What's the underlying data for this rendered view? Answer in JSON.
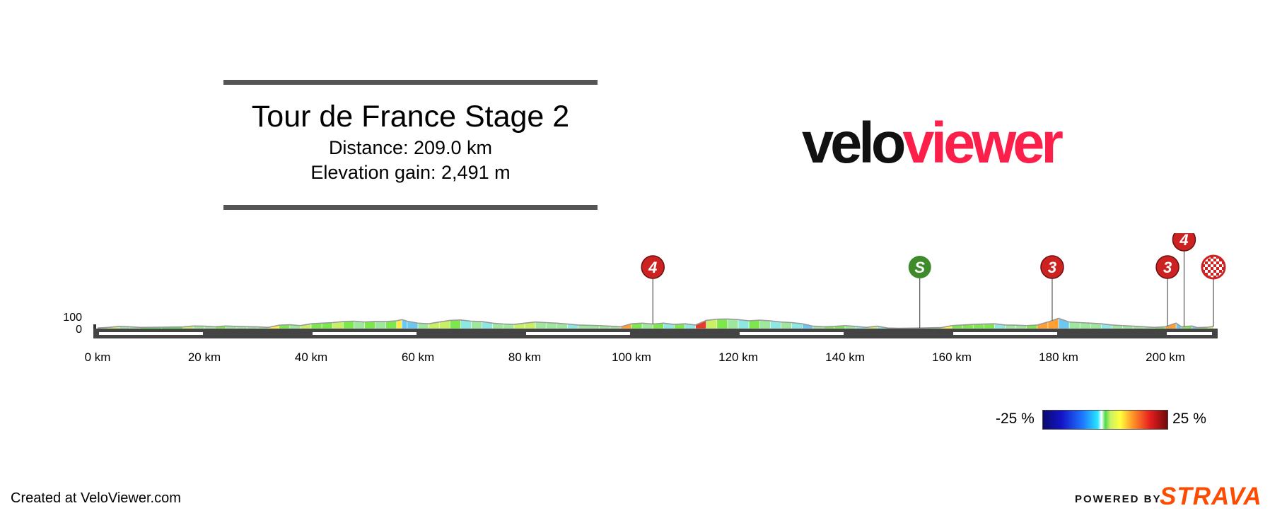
{
  "stage": {
    "title": "Tour de France Stage 2",
    "distance_text": "Distance: 209.0 km",
    "elevation_text": "Elevation gain: 2,491 m"
  },
  "logo": {
    "part1": "velo",
    "part2": "viewer",
    "color_dark": "#111111",
    "color_red": "#fc1f49"
  },
  "legend": {
    "min_label": "-25 %",
    "max_label": "25 %",
    "type": "gradient colour scale"
  },
  "footer": {
    "credit": "Created at VeloViewer.com",
    "powered_by": "POWERED BY",
    "brand": "STRAVA"
  },
  "colors": {
    "climb_marker": "#cc2222",
    "sprint_marker": "#3f8a2a",
    "bar": "#444444",
    "ground": "#333333"
  },
  "chart_data": {
    "type": "area",
    "title": "Tour de France Stage 2",
    "xlabel": "",
    "ylabel": "",
    "x_unit": "km",
    "xlim": [
      0,
      209
    ],
    "ylim": [
      0,
      160
    ],
    "yticks": [
      0,
      100
    ],
    "ytick_labels": [
      "0",
      "100"
    ],
    "xticks": [
      0,
      20,
      40,
      60,
      80,
      100,
      120,
      140,
      160,
      180,
      200
    ],
    "xtick_labels": [
      "0 km",
      "20 km",
      "40 km",
      "60 km",
      "80 km",
      "100 km",
      "120 km",
      "140 km",
      "160 km",
      "180 km",
      "200 km"
    ],
    "profile": [
      {
        "km": 0,
        "elev": 5
      },
      {
        "km": 2,
        "elev": 10
      },
      {
        "km": 4,
        "elev": 18
      },
      {
        "km": 6,
        "elev": 15
      },
      {
        "km": 8,
        "elev": 10
      },
      {
        "km": 12,
        "elev": 12
      },
      {
        "km": 16,
        "elev": 14
      },
      {
        "km": 18,
        "elev": 22
      },
      {
        "km": 20,
        "elev": 20
      },
      {
        "km": 22,
        "elev": 15
      },
      {
        "km": 24,
        "elev": 22
      },
      {
        "km": 26,
        "elev": 18
      },
      {
        "km": 28,
        "elev": 16
      },
      {
        "km": 30,
        "elev": 14
      },
      {
        "km": 32,
        "elev": 10
      },
      {
        "km": 34,
        "elev": 28
      },
      {
        "km": 36,
        "elev": 32
      },
      {
        "km": 38,
        "elev": 25
      },
      {
        "km": 40,
        "elev": 40
      },
      {
        "km": 42,
        "elev": 45
      },
      {
        "km": 44,
        "elev": 50
      },
      {
        "km": 46,
        "elev": 58
      },
      {
        "km": 48,
        "elev": 62
      },
      {
        "km": 50,
        "elev": 55
      },
      {
        "km": 52,
        "elev": 60
      },
      {
        "km": 54,
        "elev": 58
      },
      {
        "km": 56,
        "elev": 65
      },
      {
        "km": 57,
        "elev": 75
      },
      {
        "km": 58,
        "elev": 62
      },
      {
        "km": 60,
        "elev": 45
      },
      {
        "km": 62,
        "elev": 40
      },
      {
        "km": 64,
        "elev": 55
      },
      {
        "km": 66,
        "elev": 68
      },
      {
        "km": 68,
        "elev": 72
      },
      {
        "km": 70,
        "elev": 62
      },
      {
        "km": 72,
        "elev": 58
      },
      {
        "km": 74,
        "elev": 45
      },
      {
        "km": 76,
        "elev": 38
      },
      {
        "km": 78,
        "elev": 35
      },
      {
        "km": 80,
        "elev": 45
      },
      {
        "km": 82,
        "elev": 55
      },
      {
        "km": 84,
        "elev": 50
      },
      {
        "km": 86,
        "elev": 45
      },
      {
        "km": 88,
        "elev": 38
      },
      {
        "km": 90,
        "elev": 30
      },
      {
        "km": 94,
        "elev": 25
      },
      {
        "km": 96,
        "elev": 20
      },
      {
        "km": 98,
        "elev": 15
      },
      {
        "km": 100,
        "elev": 40
      },
      {
        "km": 102,
        "elev": 45
      },
      {
        "km": 104,
        "elev": 38
      },
      {
        "km": 106,
        "elev": 45
      },
      {
        "km": 108,
        "elev": 35
      },
      {
        "km": 110,
        "elev": 40
      },
      {
        "km": 112,
        "elev": 30
      },
      {
        "km": 114,
        "elev": 68
      },
      {
        "km": 116,
        "elev": 78
      },
      {
        "km": 118,
        "elev": 80
      },
      {
        "km": 120,
        "elev": 75
      },
      {
        "km": 122,
        "elev": 65
      },
      {
        "km": 124,
        "elev": 70
      },
      {
        "km": 126,
        "elev": 65
      },
      {
        "km": 128,
        "elev": 55
      },
      {
        "km": 130,
        "elev": 50
      },
      {
        "km": 132,
        "elev": 40
      },
      {
        "km": 134,
        "elev": 20
      },
      {
        "km": 136,
        "elev": 15
      },
      {
        "km": 138,
        "elev": 18
      },
      {
        "km": 140,
        "elev": 25
      },
      {
        "km": 142,
        "elev": 18
      },
      {
        "km": 144,
        "elev": 10
      },
      {
        "km": 146,
        "elev": 20
      },
      {
        "km": 148,
        "elev": 5
      },
      {
        "km": 150,
        "elev": 3
      },
      {
        "km": 154,
        "elev": 5
      },
      {
        "km": 158,
        "elev": 8
      },
      {
        "km": 160,
        "elev": 25
      },
      {
        "km": 162,
        "elev": 30
      },
      {
        "km": 164,
        "elev": 35
      },
      {
        "km": 166,
        "elev": 38
      },
      {
        "km": 168,
        "elev": 40
      },
      {
        "km": 170,
        "elev": 30
      },
      {
        "km": 172,
        "elev": 28
      },
      {
        "km": 174,
        "elev": 25
      },
      {
        "km": 176,
        "elev": 30
      },
      {
        "km": 178,
        "elev": 55
      },
      {
        "km": 180,
        "elev": 85
      },
      {
        "km": 182,
        "elev": 55
      },
      {
        "km": 184,
        "elev": 50
      },
      {
        "km": 186,
        "elev": 45
      },
      {
        "km": 188,
        "elev": 40
      },
      {
        "km": 190,
        "elev": 30
      },
      {
        "km": 192,
        "elev": 25
      },
      {
        "km": 194,
        "elev": 20
      },
      {
        "km": 196,
        "elev": 15
      },
      {
        "km": 198,
        "elev": 10
      },
      {
        "km": 200,
        "elev": 15
      },
      {
        "km": 202,
        "elev": 45
      },
      {
        "km": 203,
        "elev": 15
      },
      {
        "km": 205,
        "elev": 22
      },
      {
        "km": 206,
        "elev": 8
      },
      {
        "km": 208,
        "elev": 12
      },
      {
        "km": 209,
        "elev": 18
      }
    ],
    "markers": [
      {
        "km": 104,
        "label": "4",
        "kind": "climb",
        "row": 0
      },
      {
        "km": 154,
        "label": "S",
        "kind": "sprint",
        "row": 0
      },
      {
        "km": 178.8,
        "label": "3",
        "kind": "climb",
        "row": 0
      },
      {
        "km": 200.4,
        "label": "3",
        "kind": "climb",
        "row": 0
      },
      {
        "km": 203.5,
        "label": "4",
        "kind": "climb",
        "row": 1
      },
      {
        "km": 209,
        "label": "",
        "kind": "finish",
        "row": 0
      }
    ]
  }
}
